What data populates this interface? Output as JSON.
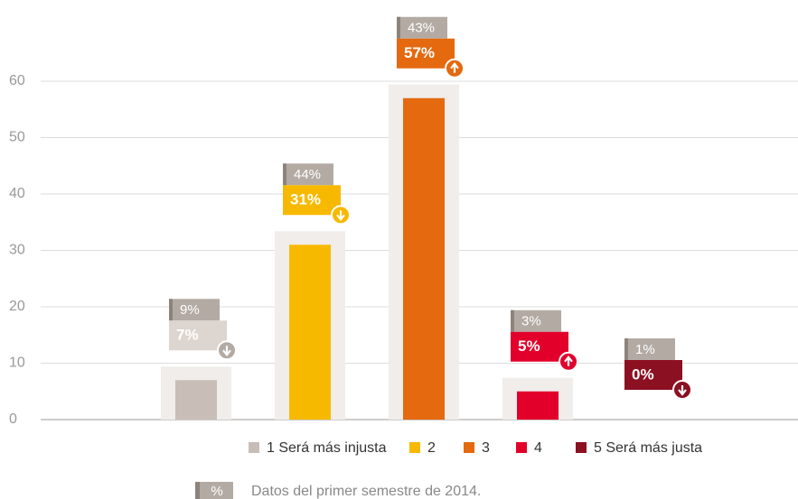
{
  "chart_data": {
    "type": "bar",
    "categories": [
      "1 Será más injusta",
      "2",
      "3",
      "4",
      "5 Será más justa"
    ],
    "values": [
      7,
      31,
      57,
      5,
      0
    ],
    "value_labels": [
      "7%",
      "31%",
      "57%",
      "5%",
      "0%"
    ],
    "colors": [
      "#c9beb7",
      "#f7b900",
      "#e4690f",
      "#e2002b",
      "#8b1022"
    ],
    "previous": {
      "values": [
        9,
        44,
        43,
        3,
        1
      ],
      "value_labels": [
        "9%",
        "44%",
        "43%",
        "3%",
        "1%"
      ]
    },
    "ylim": [
      0,
      60
    ],
    "yticks": [
      0,
      10,
      20,
      30,
      40,
      50,
      60
    ],
    "grid": true,
    "legend": "bottom",
    "footnote": {
      "marker": "%",
      "text": "Datos del primer semestre de 2014."
    }
  }
}
